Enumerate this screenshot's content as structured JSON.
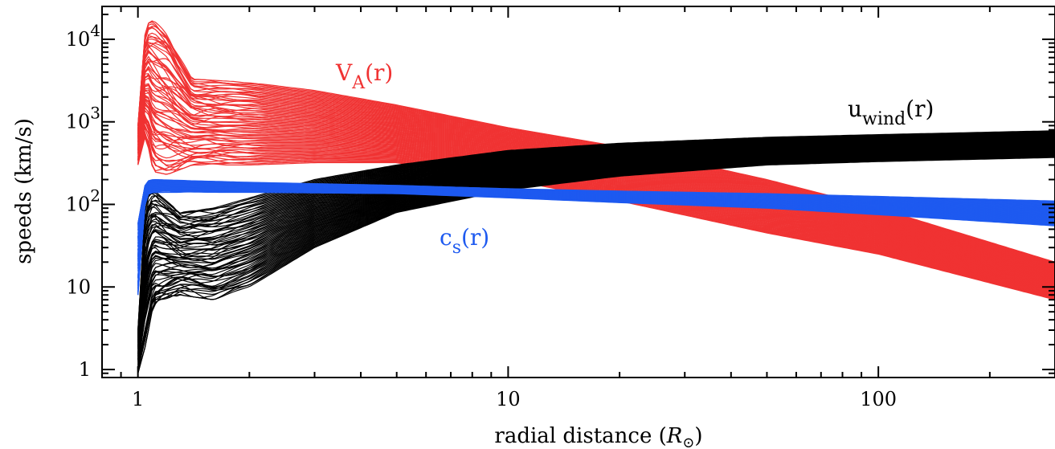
{
  "chart_data": {
    "type": "line",
    "xlabel": "radial distance (R⊙)",
    "ylabel": "speeds (km/s)",
    "xscale": "log",
    "yscale": "log",
    "xlim": [
      0.8,
      300
    ],
    "ylim": [
      0.8,
      25000
    ],
    "x_ticks": [
      {
        "value": 1,
        "label": "1"
      },
      {
        "value": 10,
        "label": "10"
      },
      {
        "value": 100,
        "label": "100"
      }
    ],
    "y_ticks": [
      {
        "value": 1,
        "label": "1"
      },
      {
        "value": 10,
        "label": "10"
      },
      {
        "value": 100,
        "label": "10",
        "exp": "2"
      },
      {
        "value": 1000,
        "label": "10",
        "exp": "3"
      },
      {
        "value": 10000,
        "label": "10",
        "exp": "4"
      }
    ],
    "grid": false,
    "series": [
      {
        "name": "V_A(r)",
        "label_base": "V",
        "label_sub": "A",
        "label_tail": "(r)",
        "color": "#f03232",
        "x": [
          1.0,
          1.05,
          1.1,
          1.2,
          1.4,
          2,
          3,
          5,
          10,
          20,
          50,
          100,
          300
        ],
        "upper": [
          900,
          15000,
          17000,
          12000,
          3300,
          3000,
          2400,
          1600,
          850,
          500,
          200,
          90,
          20
        ],
        "lower": [
          300,
          700,
          250,
          230,
          300,
          300,
          320,
          320,
          200,
          110,
          45,
          25,
          7
        ]
      },
      {
        "name": "u_wind(r)",
        "label_base": "u",
        "label_sub": "wind",
        "label_tail": "(r)",
        "color": "#000000",
        "x": [
          1.0,
          1.05,
          1.1,
          1.3,
          1.6,
          2,
          3,
          5,
          10,
          20,
          50,
          100,
          300
        ],
        "upper": [
          3,
          120,
          150,
          80,
          90,
          120,
          200,
          300,
          450,
          550,
          650,
          700,
          780
        ],
        "lower": [
          0.9,
          2,
          6,
          8,
          7,
          10,
          30,
          80,
          150,
          220,
          300,
          330,
          370
        ]
      },
      {
        "name": "c_s(r)",
        "label_base": "c",
        "label_sub": "s",
        "label_tail": "(r)",
        "color": "#1e5af0",
        "x": [
          1.0,
          1.05,
          1.1,
          2,
          5,
          10,
          20,
          50,
          100,
          300
        ],
        "upper": [
          60,
          190,
          200,
          185,
          170,
          155,
          145,
          135,
          125,
          110
        ],
        "lower": [
          8,
          130,
          140,
          140,
          135,
          120,
          105,
          90,
          75,
          55
        ]
      }
    ]
  }
}
